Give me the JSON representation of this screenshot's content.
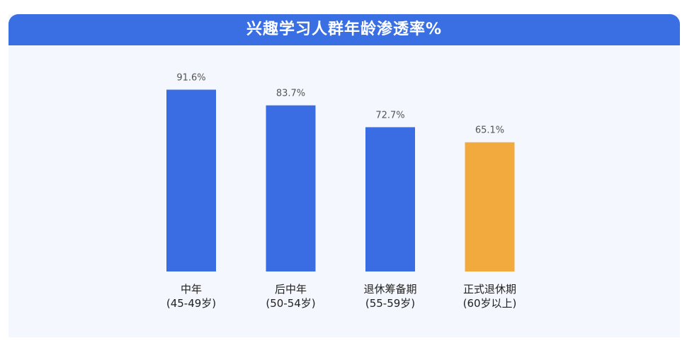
{
  "header": {
    "title": "兴趣学习人群年龄渗透率%"
  },
  "colors": {
    "header": "#3a6fe3",
    "bar_default": "#3a6de4",
    "bar_highlight": "#f2a93e",
    "background": "#f4f7fd"
  },
  "chart_data": {
    "type": "bar",
    "title": "兴趣学习人群年龄渗透率%",
    "categories": [
      [
        "中年",
        "(45-49岁)"
      ],
      [
        "后中年",
        "(50-54岁)"
      ],
      [
        "退休筹备期",
        "(55-59岁)"
      ],
      [
        "正式退休期",
        "(60岁以上)"
      ]
    ],
    "values": [
      91.6,
      83.7,
      72.7,
      65.1
    ],
    "value_labels": [
      "91.6%",
      "83.7%",
      "72.7%",
      "65.1%"
    ],
    "highlight_index": 3,
    "ylim": [
      0,
      100
    ],
    "grid": false,
    "xlabel": "",
    "ylabel": ""
  }
}
